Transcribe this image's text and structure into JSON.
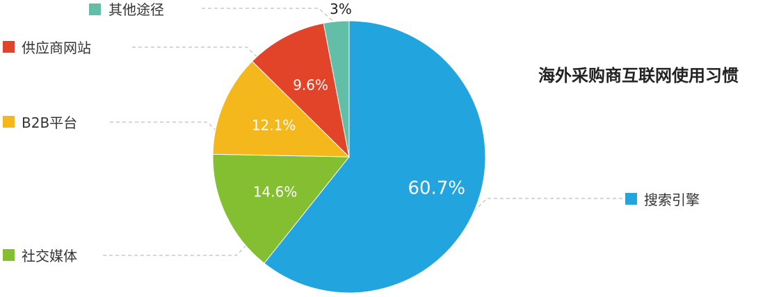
{
  "chart_data": {
    "type": "pie",
    "title": "海外采购商互联网使用习惯",
    "categories": [
      "搜索引擎",
      "社交媒体",
      "B2B平台",
      "供应商网站",
      "其他途径"
    ],
    "values": [
      60.7,
      14.6,
      12.1,
      9.6,
      3
    ],
    "value_labels": [
      "60.7%",
      "14.6%",
      "12.1%",
      "9.6%",
      "3%"
    ],
    "colors": [
      "#22a4de",
      "#83bf31",
      "#f5b81c",
      "#e2442a",
      "#62bea6"
    ],
    "start_angle_deg": 0,
    "direction": "clockwise",
    "legend": "callout labels beside each slice with colored squares"
  }
}
